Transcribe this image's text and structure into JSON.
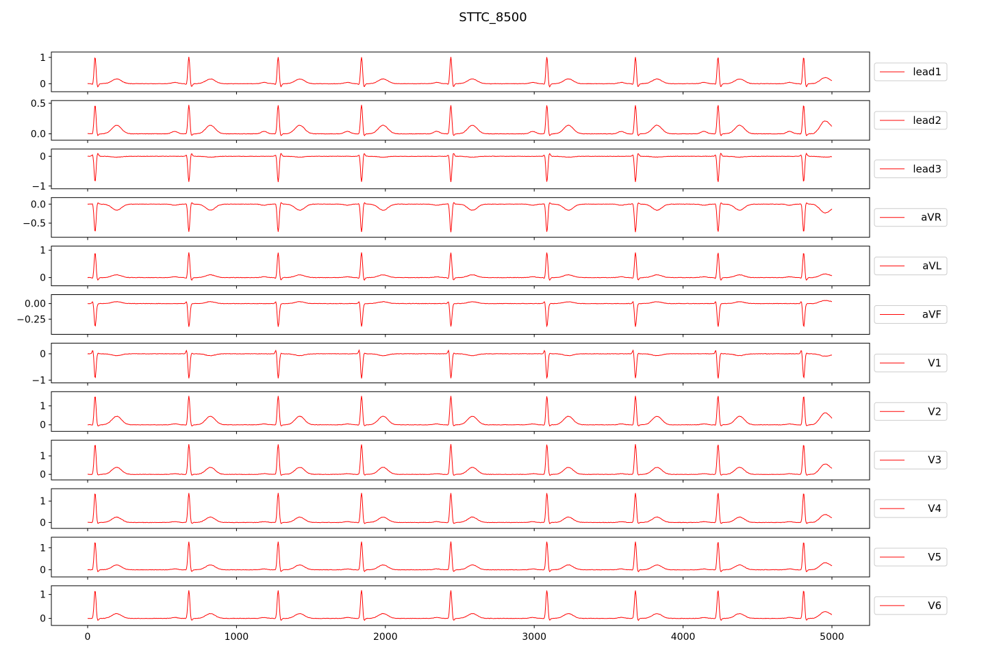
{
  "title": "STTC_8500",
  "chart_data": {
    "type": "line",
    "title": "STTC_8500",
    "x_range": [
      0,
      5000
    ],
    "x_ticks": [
      0,
      1000,
      2000,
      3000,
      4000,
      5000
    ],
    "line_color": "#ff0000",
    "legend_placement": "outside-right",
    "grid": false,
    "beats": [
      50,
      680,
      1280,
      1840,
      2440,
      3085,
      3680,
      4235,
      4810
    ],
    "series": [
      {
        "name": "lead1",
        "r": 1.05,
        "q": -0.1,
        "s": -0.18,
        "t": 0.18,
        "p": 0.05,
        "end": 0.05,
        "yticks": [
          0,
          1
        ],
        "ylim": [
          -0.2,
          1.1
        ]
      },
      {
        "name": "lead2",
        "r": 0.48,
        "q": -0.02,
        "s": -0.05,
        "t": 0.14,
        "p": 0.04,
        "end": 0.07,
        "yticks": [
          0.0,
          0.5
        ],
        "ylim": [
          -0.06,
          0.5
        ]
      },
      {
        "name": "lead3",
        "r": -0.9,
        "q": 0.12,
        "s": 0.15,
        "t": -0.03,
        "p": 0.0,
        "end": 0.0,
        "yticks": [
          -1,
          0
        ],
        "ylim": [
          -1.0,
          0.15
        ]
      },
      {
        "name": "aVR",
        "r": -0.75,
        "q": 0.05,
        "s": 0.07,
        "t": -0.16,
        "p": -0.03,
        "end": -0.07,
        "yticks": [
          -0.5,
          0.0
        ],
        "ylim": [
          -0.8,
          0.1
        ]
      },
      {
        "name": "aVL",
        "r": 0.95,
        "q": -0.1,
        "s": -0.15,
        "t": 0.1,
        "p": 0.03,
        "end": 0.03,
        "yticks": [
          0,
          1
        ],
        "ylim": [
          -0.2,
          1.05
        ]
      },
      {
        "name": "aVF",
        "r": -0.38,
        "q": 0.07,
        "s": 0.0,
        "t": 0.03,
        "p": 0.0,
        "end": 0.02,
        "yticks": [
          -0.25,
          0.0
        ],
        "ylim": [
          -0.45,
          0.1
        ]
      },
      {
        "name": "V1",
        "r": -0.97,
        "q": 0.25,
        "s": 0.05,
        "t": -0.07,
        "p": 0.0,
        "end": -0.02,
        "yticks": [
          -1,
          0
        ],
        "ylim": [
          -1.0,
          0.3
        ]
      },
      {
        "name": "V2",
        "r": 1.55,
        "q": -0.1,
        "s": -0.12,
        "t": 0.45,
        "p": 0.05,
        "end": 0.18,
        "yticks": [
          0,
          1
        ],
        "ylim": [
          -0.2,
          1.6
        ]
      },
      {
        "name": "V3",
        "r": 1.65,
        "q": -0.05,
        "s": -0.1,
        "t": 0.38,
        "p": 0.04,
        "end": 0.18,
        "yticks": [
          0,
          1
        ],
        "ylim": [
          -0.15,
          1.7
        ]
      },
      {
        "name": "V4",
        "r": 1.4,
        "q": -0.05,
        "s": -0.1,
        "t": 0.25,
        "p": 0.04,
        "end": 0.12,
        "yticks": [
          0,
          1
        ],
        "ylim": [
          -0.15,
          1.45
        ]
      },
      {
        "name": "V5",
        "r": 1.3,
        "q": -0.06,
        "s": -0.15,
        "t": 0.22,
        "p": 0.04,
        "end": 0.1,
        "yticks": [
          0,
          1
        ],
        "ylim": [
          -0.2,
          1.35
        ]
      },
      {
        "name": "V6",
        "r": 1.2,
        "q": -0.05,
        "s": -0.14,
        "t": 0.2,
        "p": 0.04,
        "end": 0.08,
        "yticks": [
          0,
          1
        ],
        "ylim": [
          -0.18,
          1.25
        ]
      }
    ]
  }
}
